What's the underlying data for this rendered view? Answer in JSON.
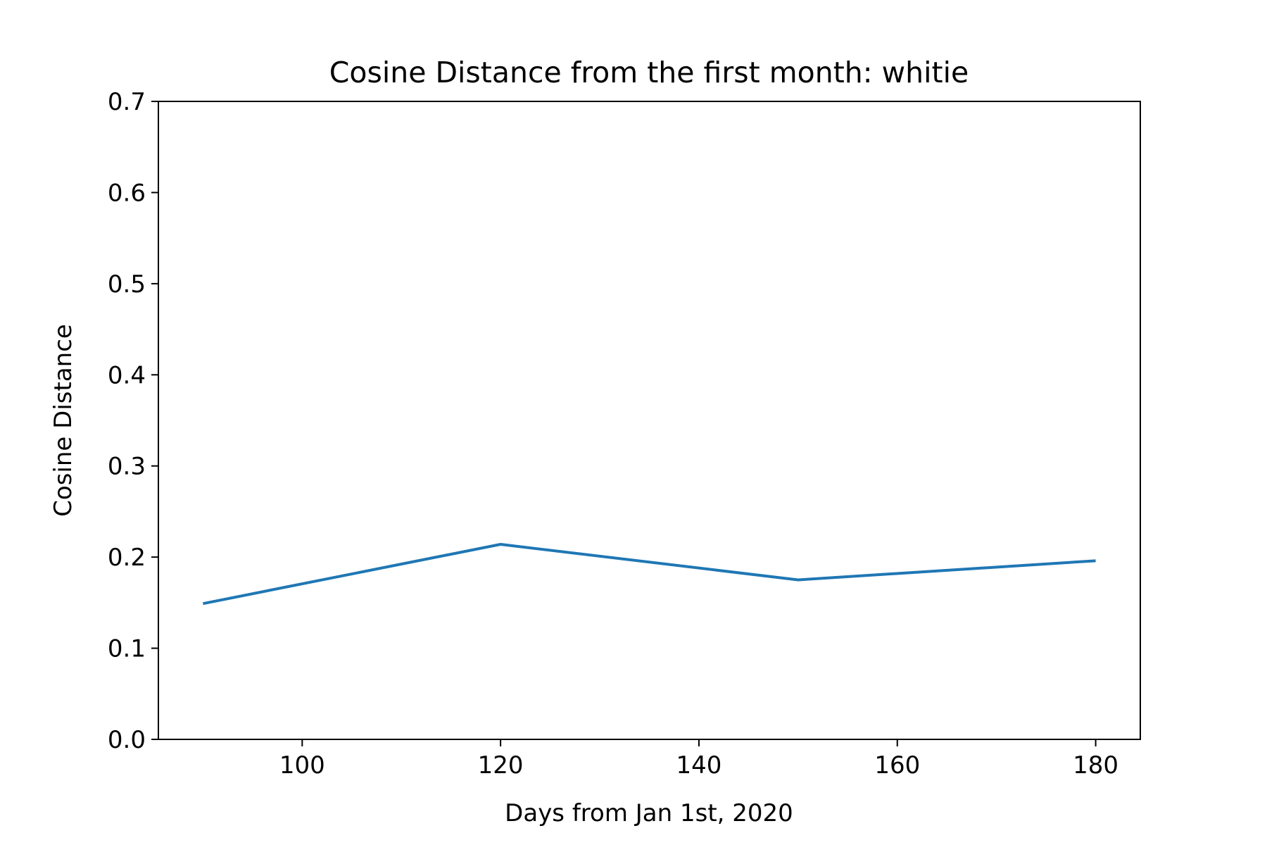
{
  "chart_data": {
    "type": "line",
    "title": "Cosine Distance from the first month: whitie",
    "xlabel": "Days from Jan 1st, 2020",
    "ylabel": "Cosine Distance",
    "xlim": [
      85.5,
      184.5
    ],
    "ylim": [
      0,
      0.7
    ],
    "x_ticks": [
      100,
      120,
      140,
      160,
      180
    ],
    "x_tick_labels": [
      "100",
      "120",
      "140",
      "160",
      "180"
    ],
    "y_ticks": [
      0,
      0.1,
      0.2,
      0.3,
      0.4,
      0.5,
      0.6,
      0.7
    ],
    "y_tick_labels": [
      "0.0",
      "0.1",
      "0.2",
      "0.3",
      "0.4",
      "0.5",
      "0.6",
      "0.7"
    ],
    "grid": false,
    "series": [
      {
        "x": [
          90,
          120,
          150,
          180
        ],
        "y": [
          0.149,
          0.214,
          0.175,
          0.196
        ],
        "color": "#1f77b4"
      }
    ]
  }
}
